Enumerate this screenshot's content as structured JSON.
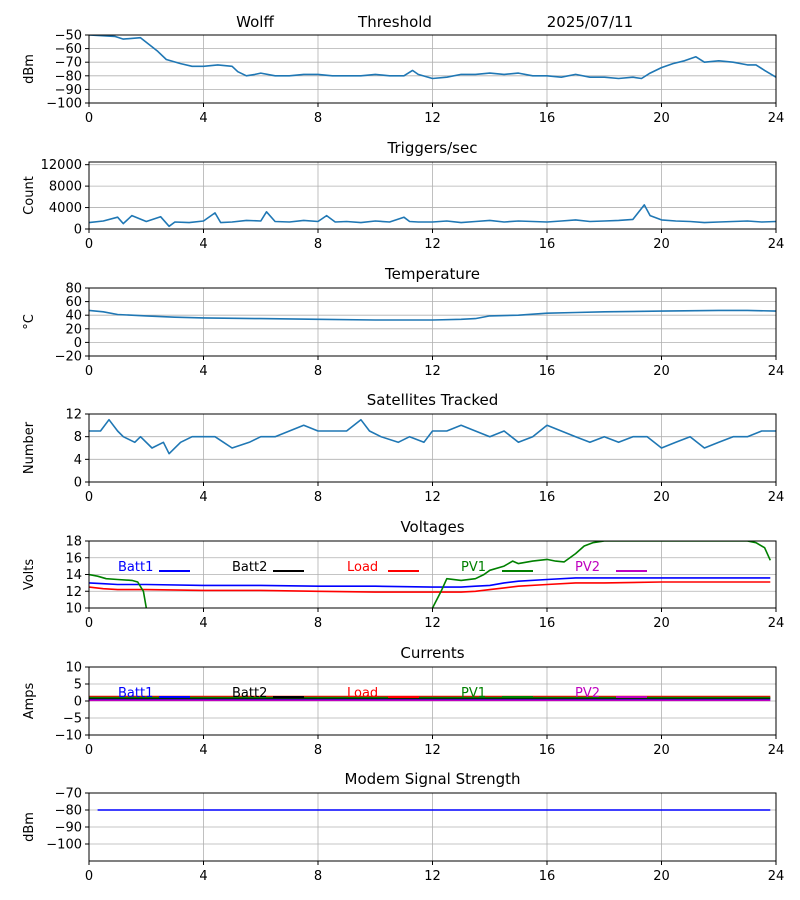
{
  "header": {
    "station": "Wolff",
    "label": "Threshold",
    "date": "2025/07/11"
  },
  "colors": {
    "tab_blue": "#1f77b4",
    "grid": "#b0b0b0",
    "batt1": "#0000ff",
    "batt2": "#000000",
    "load": "#ff0000",
    "pv1": "#008000",
    "pv2": "#bf00bf"
  },
  "x_axis": {
    "min": 0,
    "max": 24,
    "ticks": [
      0,
      4,
      8,
      12,
      16,
      20,
      24
    ]
  },
  "chart_data": [
    {
      "id": "threshold",
      "type": "line",
      "title": "",
      "ylabel": "dBm",
      "ylim": [
        -100,
        -50
      ],
      "yticks": [
        -50,
        -60,
        -70,
        -80,
        -90,
        -100
      ],
      "series": [
        {
          "color": "#1f77b4",
          "x": [
            0,
            0.9,
            1.2,
            1.8,
            2.1,
            2.4,
            2.7,
            3.2,
            3.6,
            4.0,
            4.5,
            5.0,
            5.2,
            5.5,
            5.8,
            6.0,
            6.5,
            7.0,
            7.5,
            8.0,
            8.5,
            9.0,
            9.5,
            10,
            10.5,
            11,
            11.3,
            11.5,
            12,
            12.5,
            13,
            13.5,
            14,
            14.5,
            15,
            15.5,
            16,
            16.5,
            17,
            17.5,
            18,
            18.5,
            19,
            19.3,
            19.6,
            20,
            20.4,
            20.8,
            21.2,
            21.5,
            22,
            22.5,
            23,
            23.3,
            23.6,
            24
          ],
          "y": [
            -50,
            -51,
            -53,
            -52,
            -57,
            -62,
            -68,
            -71,
            -73,
            -73,
            -72,
            -73,
            -77,
            -80,
            -79,
            -78,
            -80,
            -80,
            -79,
            -79,
            -80,
            -80,
            -80,
            -79,
            -80,
            -80,
            -76,
            -79,
            -82,
            -81,
            -79,
            -79,
            -78,
            -79,
            -78,
            -80,
            -80,
            -81,
            -79,
            -81,
            -81,
            -82,
            -81,
            -82,
            -78,
            -74,
            -71,
            -69,
            -66,
            -70,
            -69,
            -70,
            -72,
            -72,
            -76,
            -81
          ]
        }
      ]
    },
    {
      "id": "triggers",
      "type": "line",
      "title": "Triggers/sec",
      "ylabel": "Count",
      "ylim": [
        0,
        12500
      ],
      "yticks": [
        0,
        4000,
        8000,
        12000
      ],
      "series": [
        {
          "color": "#1f77b4",
          "x": [
            0,
            0.5,
            1.0,
            1.2,
            1.5,
            2.0,
            2.5,
            2.8,
            3.0,
            3.5,
            4.0,
            4.4,
            4.6,
            5.0,
            5.5,
            6.0,
            6.2,
            6.5,
            7.0,
            7.5,
            8.0,
            8.3,
            8.6,
            9.0,
            9.5,
            10,
            10.5,
            11,
            11.2,
            11.5,
            12,
            12.5,
            13,
            13.5,
            14,
            14.5,
            15,
            15.5,
            16,
            16.5,
            17,
            17.5,
            18,
            18.5,
            19,
            19.4,
            19.6,
            20,
            20.5,
            21,
            21.5,
            22,
            22.5,
            23,
            23.5,
            24
          ],
          "y": [
            1200,
            1500,
            2200,
            1000,
            2500,
            1400,
            2300,
            500,
            1300,
            1200,
            1500,
            3000,
            1200,
            1300,
            1600,
            1500,
            3200,
            1400,
            1300,
            1600,
            1400,
            2500,
            1300,
            1400,
            1200,
            1500,
            1300,
            2200,
            1400,
            1300,
            1300,
            1500,
            1200,
            1400,
            1600,
            1300,
            1500,
            1400,
            1300,
            1500,
            1700,
            1400,
            1500,
            1600,
            1800,
            4500,
            2500,
            1700,
            1500,
            1400,
            1200,
            1300,
            1400,
            1500,
            1300,
            1400
          ]
        }
      ]
    },
    {
      "id": "temperature",
      "type": "line",
      "title": "Temperature",
      "ylabel": "°C",
      "ylim": [
        -20,
        80
      ],
      "yticks": [
        -20,
        0,
        20,
        40,
        60,
        80
      ],
      "series": [
        {
          "color": "#1f77b4",
          "x": [
            0,
            0.5,
            1,
            2,
            3,
            4,
            6,
            8,
            10,
            12,
            13,
            13.5,
            14,
            15,
            16,
            17,
            18,
            20,
            22,
            23,
            24
          ],
          "y": [
            47,
            45,
            41,
            39,
            37,
            36,
            35,
            34,
            33,
            33,
            34,
            35,
            39,
            40,
            43,
            44,
            45,
            46,
            47,
            47,
            46
          ]
        }
      ]
    },
    {
      "id": "satellites",
      "type": "line",
      "title": "Satellites Tracked",
      "ylabel": "Number",
      "ylim": [
        0,
        12
      ],
      "yticks": [
        0,
        4,
        8,
        12
      ],
      "series": [
        {
          "color": "#1f77b4",
          "x": [
            0,
            0.4,
            0.7,
            1.0,
            1.2,
            1.6,
            1.8,
            2.2,
            2.6,
            2.8,
            3.2,
            3.6,
            4.0,
            4.4,
            4.7,
            5.0,
            5.6,
            6.0,
            6.5,
            7.0,
            7.5,
            8.0,
            8.5,
            9.0,
            9.5,
            9.8,
            10.2,
            10.8,
            11.2,
            11.7,
            12.0,
            12.5,
            13.0,
            13.5,
            14.0,
            14.5,
            15.0,
            15.5,
            16.0,
            16.5,
            17.0,
            17.5,
            18.0,
            18.5,
            19.0,
            19.5,
            20.0,
            20.5,
            21.0,
            21.5,
            22.0,
            22.5,
            23.0,
            23.5,
            24
          ],
          "y": [
            9,
            9,
            11,
            9,
            8,
            7,
            8,
            6,
            7,
            5,
            7,
            8,
            8,
            8,
            7,
            6,
            7,
            8,
            8,
            9,
            10,
            9,
            9,
            9,
            11,
            9,
            8,
            7,
            8,
            7,
            9,
            9,
            10,
            9,
            8,
            9,
            7,
            8,
            10,
            9,
            8,
            7,
            8,
            7,
            8,
            8,
            6,
            7,
            8,
            6,
            7,
            8,
            8,
            9,
            9
          ]
        }
      ]
    },
    {
      "id": "voltages",
      "type": "line",
      "title": "Voltages",
      "ylabel": "Volts",
      "ylim": [
        10,
        18
      ],
      "yticks": [
        10,
        12,
        14,
        16,
        18
      ],
      "legend": [
        "Batt1",
        "Batt2",
        "Load",
        "PV1",
        "PV2"
      ],
      "series": [
        {
          "name": "Batt1",
          "color": "#0000ff",
          "x": [
            0,
            0.5,
            1,
            2,
            4,
            6,
            8,
            10,
            12,
            13,
            13.5,
            14,
            14.5,
            15,
            16,
            17,
            18,
            20,
            22,
            23.8
          ],
          "y": [
            13.0,
            12.9,
            12.8,
            12.8,
            12.7,
            12.7,
            12.6,
            12.6,
            12.5,
            12.5,
            12.6,
            12.7,
            13.0,
            13.2,
            13.4,
            13.6,
            13.6,
            13.6,
            13.6,
            13.6
          ]
        },
        {
          "name": "Batt2",
          "color": "#000000",
          "x": [],
          "y": []
        },
        {
          "name": "Load",
          "color": "#ff0000",
          "x": [
            0,
            0.5,
            1,
            2,
            4,
            6,
            8,
            10,
            12,
            13,
            13.5,
            14,
            14.5,
            15,
            16,
            17,
            18,
            20,
            22,
            23.8
          ],
          "y": [
            12.5,
            12.3,
            12.2,
            12.2,
            12.1,
            12.1,
            12.0,
            11.9,
            11.9,
            11.9,
            12.0,
            12.2,
            12.4,
            12.6,
            12.8,
            13.0,
            13.0,
            13.1,
            13.1,
            13.1
          ]
        },
        {
          "name": "PV1",
          "color": "#008000",
          "x": [
            0,
            0.3,
            0.6,
            1,
            1.5,
            1.7,
            1.9,
            2.0,
            null,
            12.0,
            12.3,
            12.5,
            13,
            13.5,
            13.8,
            14,
            14.5,
            14.8,
            15,
            15.5,
            16,
            16.3,
            16.6,
            17,
            17.3,
            17.6,
            18,
            23.0,
            23.3,
            23.6,
            23.8
          ],
          "y": [
            14.0,
            13.8,
            13.5,
            13.4,
            13.3,
            13.1,
            12.0,
            10.0,
            null,
            10.0,
            12.0,
            13.5,
            13.3,
            13.5,
            14.0,
            14.5,
            15.0,
            15.6,
            15.3,
            15.6,
            15.8,
            15.6,
            15.5,
            16.5,
            17.4,
            17.8,
            18.0,
            18.0,
            17.8,
            17.2,
            15.7
          ]
        },
        {
          "name": "PV2",
          "color": "#bf00bf",
          "x": [],
          "y": []
        }
      ]
    },
    {
      "id": "currents",
      "type": "line",
      "title": "Currents",
      "ylabel": "Amps",
      "ylim": [
        -10,
        10
      ],
      "yticks": [
        -10,
        -5,
        0,
        5,
        10
      ],
      "legend": [
        "Batt1",
        "Batt2",
        "Load",
        "PV1",
        "PV2"
      ],
      "series": [
        {
          "name": "Batt1",
          "color": "#0000ff",
          "x": [
            0,
            23.8
          ],
          "y": [
            0.4,
            0.4
          ]
        },
        {
          "name": "Batt2",
          "color": "#000000",
          "x": [
            0,
            23.8
          ],
          "y": [
            0.8,
            0.8
          ]
        },
        {
          "name": "Load",
          "color": "#ff0000",
          "x": [
            0,
            23.8
          ],
          "y": [
            1.3,
            1.3
          ]
        },
        {
          "name": "PV1",
          "color": "#008000",
          "x": [
            0,
            23.8
          ],
          "y": [
            1.0,
            1.0
          ]
        },
        {
          "name": "PV2",
          "color": "#bf00bf",
          "x": [
            0,
            23.8
          ],
          "y": [
            0.2,
            0.2
          ]
        }
      ]
    },
    {
      "id": "modem",
      "type": "line",
      "title": "Modem Signal Strength",
      "ylabel": "dBm",
      "ylim": [
        -110,
        -70
      ],
      "yticks": [
        -70,
        -80,
        -90,
        -100
      ],
      "series": [
        {
          "color": "#0000ff",
          "x": [
            0.3,
            23.8
          ],
          "y": [
            -80,
            -80
          ]
        }
      ]
    }
  ]
}
